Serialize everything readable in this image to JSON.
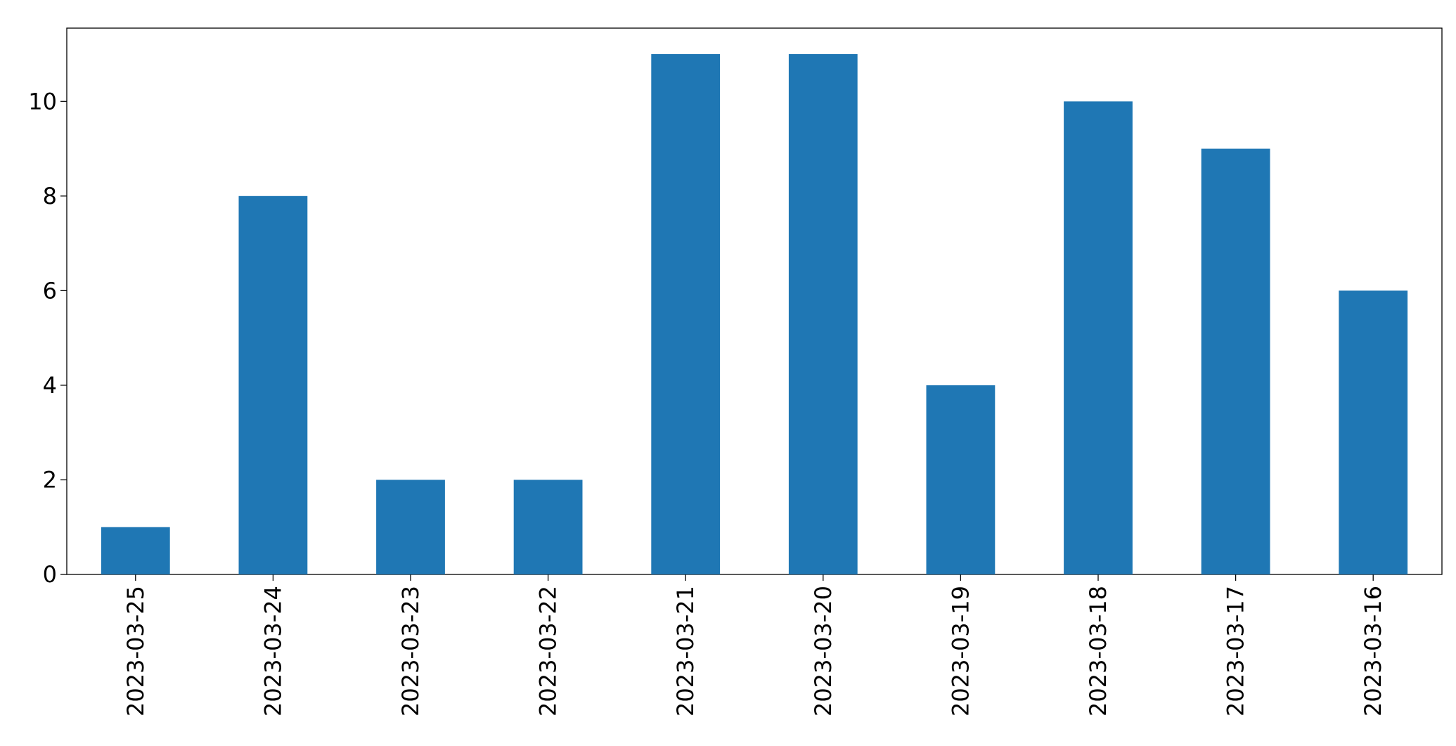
{
  "chart_data": {
    "type": "bar",
    "categories": [
      "2023-03-25",
      "2023-03-24",
      "2023-03-23",
      "2023-03-22",
      "2023-03-21",
      "2023-03-20",
      "2023-03-19",
      "2023-03-18",
      "2023-03-17",
      "2023-03-16"
    ],
    "values": [
      1,
      8,
      2,
      2,
      11,
      11,
      4,
      10,
      9,
      6
    ],
    "color": "#1f77b4",
    "ylim": [
      0,
      11.55
    ],
    "yticks": [
      0,
      2,
      4,
      6,
      8,
      10
    ],
    "grid": false
  }
}
